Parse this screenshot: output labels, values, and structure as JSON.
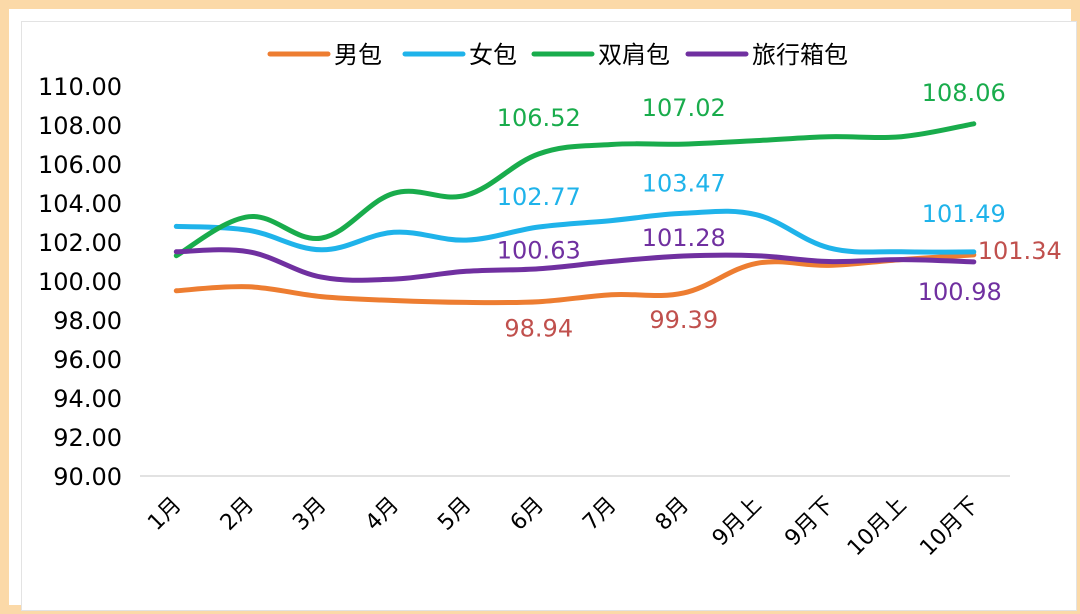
{
  "chart_data": {
    "type": "line",
    "categories": [
      "1月",
      "2月",
      "3月",
      "4月",
      "5月",
      "6月",
      "7月",
      "8月",
      "9月上",
      "9月下",
      "10月上",
      "10月下"
    ],
    "ylim": [
      90,
      110
    ],
    "y_ticks": [
      "90.00",
      "92.00",
      "94.00",
      "96.00",
      "98.00",
      "100.00",
      "102.00",
      "104.00",
      "106.00",
      "108.00",
      "110.00"
    ],
    "grid": false,
    "legend_position": "top",
    "series": [
      {
        "name": "男包",
        "color": "#ed7d31",
        "label_color": "#c0504d",
        "values": [
          99.5,
          99.7,
          99.2,
          99.0,
          98.9,
          98.94,
          99.3,
          99.39,
          100.9,
          100.8,
          101.1,
          101.34
        ],
        "labels": [
          {
            "i": 5,
            "text": "98.94"
          },
          {
            "i": 7,
            "text": "99.39"
          },
          {
            "i": 11,
            "text": "101.34"
          }
        ]
      },
      {
        "name": "女包",
        "color": "#1fb3ea",
        "label_color": "#1fb3ea",
        "values": [
          102.8,
          102.6,
          101.6,
          102.5,
          102.1,
          102.77,
          103.1,
          103.47,
          103.4,
          101.7,
          101.5,
          101.49
        ],
        "labels": [
          {
            "i": 5,
            "text": "102.77"
          },
          {
            "i": 7,
            "text": "103.47"
          },
          {
            "i": 11,
            "text": "101.49"
          }
        ]
      },
      {
        "name": "双肩包",
        "color": "#19ac4c",
        "label_color": "#19ac4c",
        "values": [
          101.3,
          103.3,
          102.2,
          104.5,
          104.4,
          106.52,
          107.0,
          107.02,
          107.2,
          107.4,
          107.4,
          108.06
        ],
        "labels": [
          {
            "i": 5,
            "text": "106.52"
          },
          {
            "i": 7,
            "text": "107.02"
          },
          {
            "i": 11,
            "text": "108.06"
          }
        ]
      },
      {
        "name": "旅行箱包",
        "color": "#7030a0",
        "label_color": "#7030a0",
        "values": [
          101.5,
          101.5,
          100.2,
          100.1,
          100.5,
          100.63,
          101.0,
          101.28,
          101.3,
          101.0,
          101.1,
          100.98
        ],
        "labels": [
          {
            "i": 5,
            "text": "100.63"
          },
          {
            "i": 7,
            "text": "101.28"
          },
          {
            "i": 11,
            "text": "100.98"
          }
        ]
      }
    ]
  }
}
